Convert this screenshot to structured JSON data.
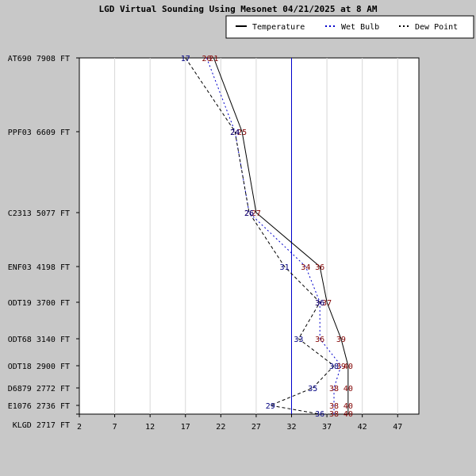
{
  "chart_data": {
    "type": "line",
    "title": "LGD Virtual Sounding Using Mesonet 04/21/2025 at 8 AM",
    "xlim": [
      2,
      50
    ],
    "x_ticks": [
      2,
      7,
      12,
      17,
      22,
      27,
      32,
      37,
      42,
      47
    ],
    "levels": [
      "AT690 7908 FT",
      "PPF03 6609 FT",
      "C2313 5077 FT",
      "ENF03 4198 FT",
      "ODT19 3700 FT",
      "ODT68 3140 FT",
      "ODT18 2900 FT",
      "D6879 2772 FT",
      "E1076 2736 FT",
      "KLGD 2717 FT"
    ],
    "freezing_line": 32,
    "series": [
      {
        "name": "Temperature",
        "color": "#000000",
        "dash": "solid",
        "label_color": "#800000",
        "values": [
          21,
          25,
          27,
          36,
          37,
          39,
          40,
          40,
          40,
          40
        ]
      },
      {
        "name": "Wet Bulb",
        "color": "#0000cc",
        "dash": "dotted",
        "label_color": "#800000",
        "values": [
          20,
          24,
          26,
          34,
          36,
          36,
          39,
          38,
          38,
          38
        ]
      },
      {
        "name": "Dew Point",
        "color": "#000000",
        "dash": "dashed",
        "label_color": "#000080",
        "values": [
          17,
          24,
          26,
          31,
          36,
          33,
          38,
          35,
          29,
          36
        ]
      }
    ],
    "legend": [
      "Temperature",
      "Wet Bulb",
      "Dew Point"
    ],
    "legend_position": "top-right",
    "grid": true
  }
}
